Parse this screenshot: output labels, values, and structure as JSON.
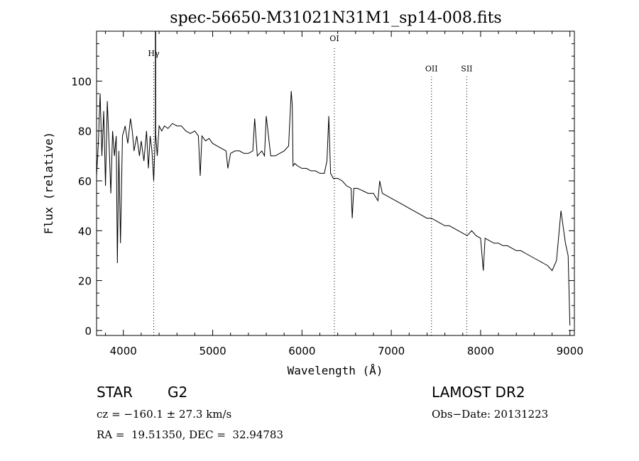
{
  "chart_data": {
    "type": "line",
    "title": "spec-56650-M31021N31M1_sp14-008.fits",
    "xlabel": "Wavelength (Å)",
    "ylabel": "Flux (relative)",
    "xlim": [
      3700,
      9050
    ],
    "ylim": [
      -2,
      120
    ],
    "xticks": [
      4000,
      5000,
      6000,
      7000,
      8000,
      9000
    ],
    "yticks": [
      0,
      20,
      40,
      60,
      80,
      100
    ],
    "grid": false,
    "series": [
      {
        "x": [
          3700,
          3720,
          3740,
          3760,
          3780,
          3800,
          3820,
          3840,
          3860,
          3880,
          3900,
          3920,
          3933,
          3950,
          3968,
          3990,
          4020,
          4050,
          4080,
          4100,
          4120,
          4150,
          4180,
          4200,
          4230,
          4260,
          4280,
          4300,
          4320,
          4340,
          4360,
          4380,
          4400,
          4430,
          4460,
          4500,
          4550,
          4600,
          4650,
          4700,
          4750,
          4800,
          4840,
          4861,
          4880,
          4920,
          4960,
          5000,
          5050,
          5100,
          5150,
          5170,
          5200,
          5250,
          5300,
          5350,
          5400,
          5450,
          5470,
          5500,
          5550,
          5580,
          5600,
          5650,
          5700,
          5750,
          5800,
          5850,
          5880,
          5892,
          5900,
          5920,
          5950,
          6000,
          6050,
          6100,
          6150,
          6200,
          6250,
          6280,
          6300,
          6320,
          6350,
          6400,
          6450,
          6500,
          6550,
          6563,
          6580,
          6620,
          6680,
          6740,
          6800,
          6850,
          6870,
          6900,
          6950,
          7000,
          7050,
          7100,
          7150,
          7200,
          7250,
          7300,
          7350,
          7400,
          7450,
          7500,
          7550,
          7600,
          7650,
          7700,
          7750,
          7800,
          7850,
          7900,
          7950,
          8000,
          8030,
          8050,
          8100,
          8150,
          8200,
          8250,
          8300,
          8350,
          8400,
          8450,
          8500,
          8550,
          8600,
          8650,
          8700,
          8750,
          8800,
          8850,
          8880,
          8900,
          8950,
          8980,
          9000
        ],
        "y": [
          62,
          75,
          95,
          70,
          88,
          58,
          92,
          75,
          55,
          80,
          70,
          78,
          27,
          72,
          35,
          78,
          82,
          75,
          85,
          80,
          72,
          78,
          70,
          76,
          68,
          80,
          65,
          78,
          72,
          60,
          80,
          70,
          82,
          80,
          82,
          81,
          83,
          82,
          82,
          80,
          79,
          80,
          78,
          62,
          78,
          76,
          77,
          75,
          74,
          73,
          72,
          65,
          71,
          72,
          72,
          71,
          71,
          72,
          85,
          70,
          72,
          70,
          86,
          70,
          70,
          71,
          72,
          74,
          96,
          90,
          66,
          67,
          66,
          65,
          65,
          64,
          64,
          63,
          63,
          68,
          86,
          63,
          61,
          61,
          60,
          58,
          57,
          45,
          57,
          57,
          56,
          55,
          55,
          52,
          60,
          55,
          54,
          53,
          52,
          51,
          50,
          49,
          48,
          47,
          46,
          45,
          45,
          44,
          43,
          42,
          42,
          41,
          40,
          39,
          38,
          40,
          38,
          37,
          24,
          37,
          36,
          35,
          35,
          34,
          34,
          33,
          32,
          32,
          31,
          30,
          29,
          28,
          27,
          26,
          24,
          28,
          40,
          48,
          35,
          30,
          2
        ]
      }
    ],
    "line_markers": [
      {
        "label": "Hγ",
        "x": 4340,
        "label_y": 110
      },
      {
        "label": "OI",
        "x": 6363,
        "label_y": 116
      },
      {
        "label": "OII",
        "x": 7450,
        "label_y": 104
      },
      {
        "label": "SII",
        "x": 7845,
        "label_y": 104
      }
    ]
  },
  "info": {
    "class": "STAR",
    "subclass": "G2",
    "survey": "LAMOST DR2",
    "cz": "cz = −160.1 ± 27.3 km/s",
    "obs_date": "Obs−Date: 20131223",
    "coords": "RA =  19.51350, DEC =  32.94783"
  }
}
